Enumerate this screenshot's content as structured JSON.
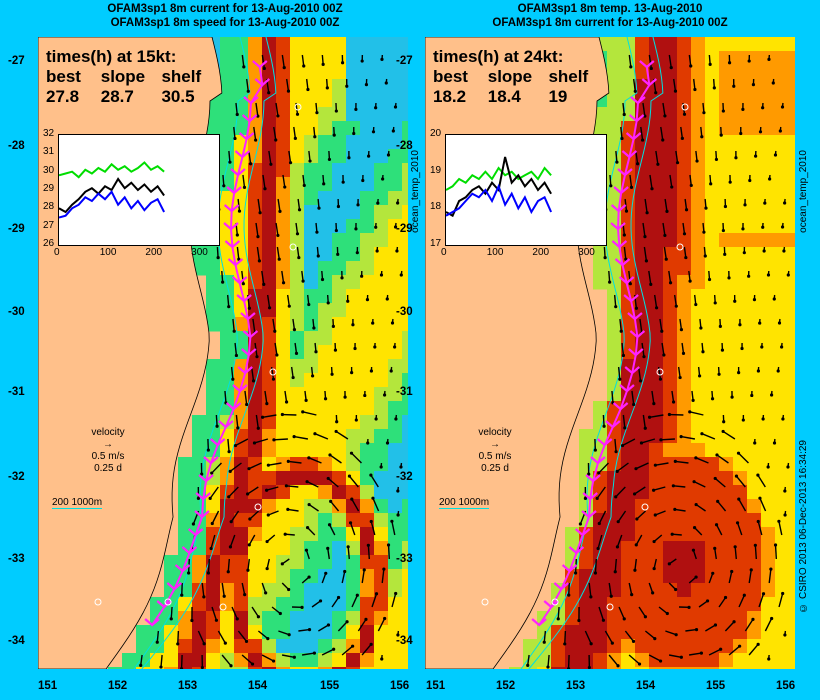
{
  "left_panel": {
    "title_line1": "OFAM3sp1 8m current for 13-Aug-2010 00Z",
    "title_line2": "OFAM3sp1 8m speed for 13-Aug-2010 00Z",
    "times_heading": "times(h) at 15kt:",
    "times_labels": [
      "best",
      "slope",
      "shelf"
    ],
    "times_values": [
      "27.8",
      "28.7",
      "30.5"
    ],
    "inset_yticks": [
      "32",
      "31",
      "30",
      "29",
      "28",
      "27",
      "26"
    ],
    "inset_xticks": [
      "0",
      "100",
      "200",
      "300"
    ],
    "velocity_label": "velocity",
    "velocity_speed": "0.5 m/s",
    "velocity_time": "0.25 d",
    "scale_label": "200  1000m",
    "side_label": "ocean_temp_2010"
  },
  "right_panel": {
    "title_line1": "OFAM3sp1 8m temp. 13-Aug-2010",
    "title_line2": "OFAM3sp1 8m current for 13-Aug-2010 00Z",
    "times_heading": "times(h) at 24kt:",
    "times_labels": [
      "best",
      "slope",
      "shelf"
    ],
    "times_values": [
      "18.2",
      "18.4",
      "19"
    ],
    "inset_yticks": [
      "20",
      "19",
      "18",
      "17"
    ],
    "inset_xticks": [
      "0",
      "100",
      "200",
      "300"
    ],
    "velocity_label": "velocity",
    "velocity_speed": "0.5 m/s",
    "velocity_time": "0.25 d",
    "scale_label": "200  1000m",
    "side_label": "ocean_temp_2010"
  },
  "lat_labels": [
    "-27",
    "-28",
    "-29",
    "-30",
    "-31",
    "-32",
    "-33",
    "-34"
  ],
  "lon_labels": [
    "151",
    "152",
    "153",
    "154",
    "155",
    "156"
  ],
  "credit": "© CSIRO 2013   06-Dec-2013 16:34:29",
  "colors": {
    "background": "#00ccff",
    "land": "#ffc08a",
    "route": "#ff22ff",
    "contour": "#00e0e0",
    "best_track": "#00dd00",
    "slope_track": "#000000",
    "shelf_track": "#0000ff"
  },
  "series": {
    "left_best": [
      29.8,
      29.9,
      30.0,
      29.7,
      30.1,
      29.9,
      30.2,
      30.0,
      30.4,
      30.1,
      30.3,
      30.0,
      30.2,
      30.5,
      30.1,
      30.3,
      30.0
    ],
    "left_slope": [
      28.0,
      27.8,
      28.2,
      28.5,
      28.9,
      29.1,
      28.8,
      29.2,
      29.0,
      29.6,
      29.1,
      29.4,
      29.0,
      29.3,
      28.9,
      29.2,
      28.7
    ],
    "left_shelf": [
      27.5,
      27.6,
      28.0,
      28.2,
      28.6,
      28.4,
      28.8,
      28.5,
      28.9,
      28.2,
      28.6,
      28.0,
      28.4,
      27.9,
      28.3,
      28.5,
      27.8
    ],
    "right_best": [
      18.5,
      18.6,
      18.8,
      18.7,
      18.9,
      18.8,
      19.0,
      18.8,
      19.1,
      18.9,
      19.0,
      18.8,
      18.9,
      19.0,
      18.8,
      19.1,
      18.9
    ],
    "right_slope": [
      17.9,
      17.8,
      18.2,
      18.3,
      18.5,
      18.6,
      18.4,
      18.7,
      18.5,
      19.4,
      18.7,
      18.9,
      18.6,
      18.8,
      18.5,
      18.7,
      18.4
    ],
    "right_shelf": [
      17.8,
      17.9,
      18.0,
      18.2,
      18.4,
      18.3,
      18.5,
      18.2,
      18.6,
      18.1,
      18.4,
      18.0,
      18.3,
      17.9,
      18.2,
      18.3,
      17.9
    ]
  }
}
